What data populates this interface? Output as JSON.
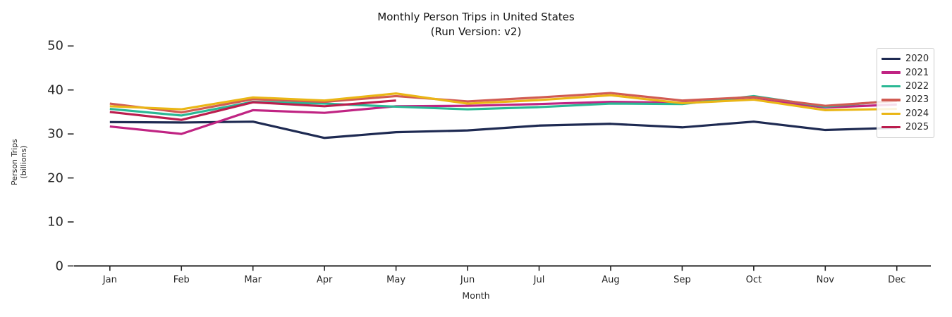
{
  "title": "Monthly Person Trips in United States",
  "subtitle": "(Run Version: v2)",
  "chart_data": {
    "type": "line",
    "x": [
      "Jan",
      "Feb",
      "Mar",
      "Apr",
      "May",
      "Jun",
      "Jul",
      "Aug",
      "Sep",
      "Oct",
      "Nov",
      "Dec"
    ],
    "xlabel": "Month",
    "ylabel": "Person Trips",
    "ylabel2": "(billions)",
    "ylim": [
      0,
      50
    ],
    "yticks": [
      0,
      10,
      20,
      30,
      40,
      50
    ],
    "grid": false,
    "legend_position": "upper right",
    "series": [
      {
        "name": "2020",
        "color": "#1e2a52",
        "values": [
          32.7,
          32.6,
          32.8,
          29.1,
          30.4,
          30.8,
          31.9,
          32.3,
          31.5,
          32.8,
          30.9,
          31.4
        ]
      },
      {
        "name": "2021",
        "color": "#c02483",
        "values": [
          31.7,
          30.0,
          35.4,
          34.8,
          36.3,
          36.4,
          36.8,
          37.3,
          37.1,
          37.9,
          36.0,
          36.7
        ]
      },
      {
        "name": "2022",
        "color": "#2ab894",
        "values": [
          35.7,
          34.2,
          37.3,
          36.9,
          36.2,
          35.6,
          36.1,
          36.9,
          36.8,
          38.6,
          36.2,
          37.6
        ]
      },
      {
        "name": "2023",
        "color": "#d15b52",
        "values": [
          36.9,
          34.9,
          37.9,
          37.3,
          38.6,
          37.4,
          38.3,
          39.3,
          37.6,
          38.4,
          36.4,
          37.5
        ]
      },
      {
        "name": "2024",
        "color": "#eab616",
        "values": [
          36.3,
          35.6,
          38.3,
          37.6,
          39.2,
          36.9,
          37.7,
          38.8,
          37.0,
          37.8,
          35.4,
          35.7
        ]
      },
      {
        "name": "2025",
        "color": "#bb1d4e",
        "values": [
          35.0,
          33.2,
          37.2,
          36.3,
          37.6,
          null,
          null,
          null,
          null,
          null,
          null,
          null
        ]
      }
    ],
    "axis_color": "#000000",
    "tick_color": "#262626"
  }
}
